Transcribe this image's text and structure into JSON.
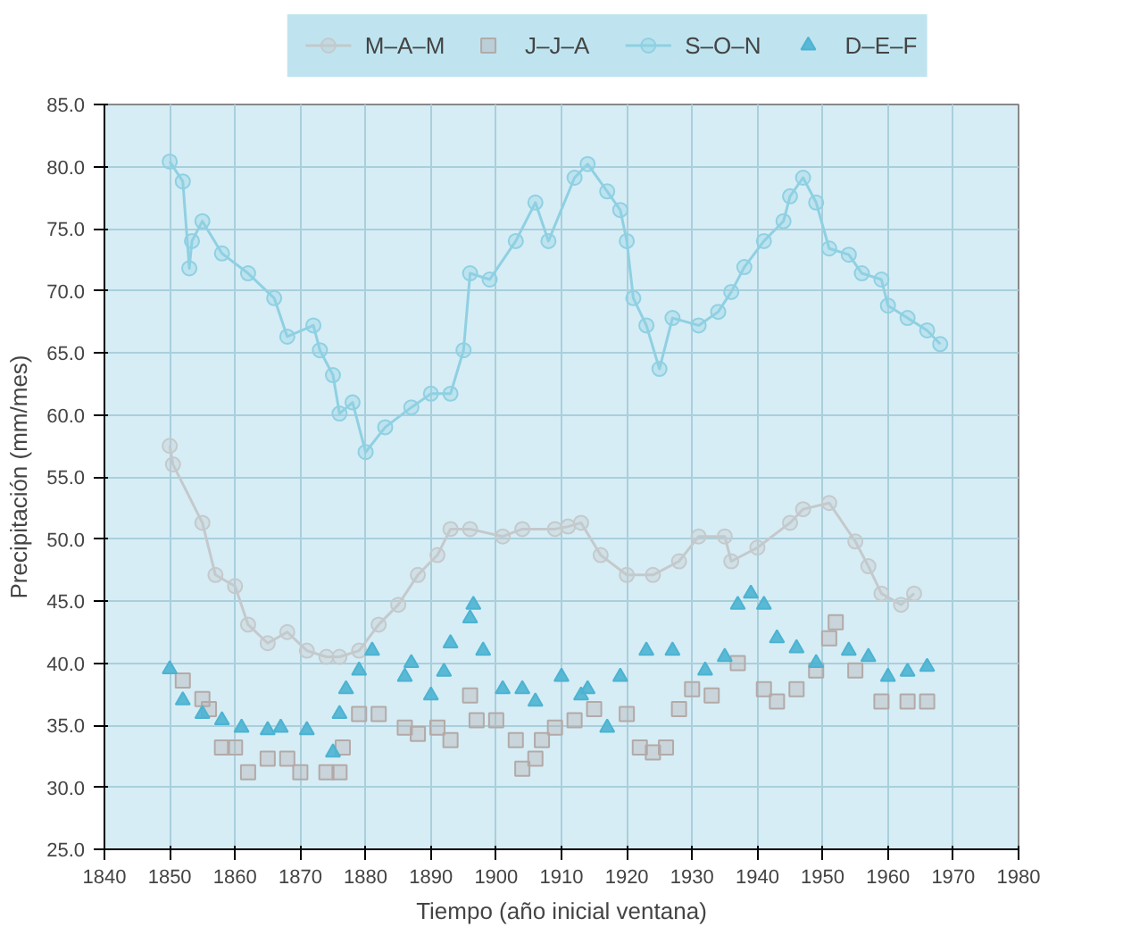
{
  "chart_data": {
    "type": "line",
    "xlabel": "Tiempo (año inicial ventana)",
    "ylabel": "Precipitación (mm/mes)",
    "xlim": [
      1840,
      1980
    ],
    "xticks": [
      1840,
      1850,
      1860,
      1870,
      1880,
      1890,
      1900,
      1910,
      1920,
      1930,
      1940,
      1950,
      1960,
      1970,
      1980
    ],
    "ylim": [
      25,
      85
    ],
    "yticks": [
      {
        "value": 25,
        "label": "25.0"
      },
      {
        "value": 30,
        "label": "30.0"
      },
      {
        "value": 35,
        "label": "35.0"
      },
      {
        "value": 40,
        "label": "40.0"
      },
      {
        "value": 45,
        "label": "45.0"
      },
      {
        "value": 50,
        "label": "50.0"
      },
      {
        "value": 55,
        "label": "55.0"
      },
      {
        "value": 60,
        "label": "60.0"
      },
      {
        "value": 65,
        "label": "65.0"
      },
      {
        "value": 70,
        "label": "70.0"
      },
      {
        "value": 75,
        "label": "75.0"
      },
      {
        "value": 80,
        "label": "80.0"
      },
      {
        "value": 85,
        "label": "85.0"
      }
    ],
    "grid": true,
    "legend": "top",
    "series": [
      {
        "name": "M–A–M",
        "marker": "circle",
        "color": "#c4c9cc",
        "x": [
          1850,
          1850.5,
          1855,
          1857,
          1860,
          1862,
          1865,
          1868,
          1871,
          1874,
          1876,
          1879,
          1882,
          1885,
          1888,
          1891,
          1893,
          1896,
          1901,
          1904,
          1909,
          1911,
          1913,
          1916,
          1920,
          1924,
          1928,
          1931,
          1935,
          1936,
          1940,
          1945,
          1947,
          1951,
          1955,
          1957,
          1959,
          1962,
          1964
        ],
        "values": [
          57.5,
          56,
          51.3,
          47.1,
          46.2,
          43.1,
          41.6,
          42.5,
          41,
          40.5,
          40.5,
          41,
          43.1,
          44.7,
          47.1,
          48.7,
          50.8,
          50.8,
          50.2,
          50.8,
          50.8,
          51.0,
          51.3,
          48.7,
          47.1,
          47.1,
          48.2,
          50.2,
          50.2,
          48.2,
          49.3,
          51.3,
          52.4,
          52.9,
          49.8,
          47.8,
          45.6,
          44.7,
          45.6
        ]
      },
      {
        "name": "J–J–A",
        "type": "scatter",
        "marker": "square",
        "color": "#b3aaa8",
        "x": [
          1852,
          1855,
          1856,
          1858,
          1860,
          1862,
          1865,
          1868,
          1870,
          1874,
          1876,
          1876.5,
          1879,
          1882,
          1886,
          1888,
          1891,
          1893,
          1896,
          1897,
          1900,
          1903,
          1904,
          1906,
          1907,
          1909,
          1912,
          1915,
          1920,
          1922,
          1924,
          1926,
          1928,
          1930,
          1933,
          1937,
          1941,
          1943,
          1946,
          1949,
          1951,
          1952,
          1955,
          1959,
          1963,
          1966
        ],
        "values": [
          38.6,
          37.1,
          36.3,
          33.2,
          33.2,
          31.2,
          32.3,
          32.3,
          31.2,
          31.2,
          31.2,
          33.2,
          35.9,
          35.9,
          34.8,
          34.3,
          34.8,
          33.8,
          37.4,
          35.4,
          35.4,
          33.8,
          31.5,
          32.3,
          33.8,
          34.8,
          35.4,
          36.3,
          35.9,
          33.2,
          32.8,
          33.2,
          36.3,
          37.9,
          37.4,
          40,
          37.9,
          36.9,
          37.9,
          39.4,
          42,
          43.3,
          39.4,
          36.9,
          36.9,
          36.9
        ]
      },
      {
        "name": "S–O–N",
        "marker": "circle",
        "color": "#8fd0e2",
        "x": [
          1850,
          1852,
          1853,
          1853.4,
          1855,
          1858,
          1862,
          1866,
          1868,
          1872,
          1873,
          1875,
          1876,
          1878,
          1880,
          1883,
          1887,
          1890,
          1893,
          1895,
          1896,
          1899,
          1903,
          1906,
          1908,
          1912,
          1914,
          1917,
          1919,
          1920,
          1921,
          1923,
          1925,
          1927,
          1931,
          1934,
          1936,
          1938,
          1941,
          1944,
          1945,
          1947,
          1949,
          1951,
          1954,
          1956,
          1959,
          1960,
          1963,
          1966,
          1968
        ],
        "values": [
          80.4,
          78.8,
          71.8,
          74,
          75.6,
          73,
          71.4,
          69.4,
          66.3,
          67.2,
          65.2,
          63.2,
          60.1,
          61,
          57,
          59,
          60.6,
          61.7,
          61.7,
          65.2,
          71.4,
          70.9,
          74,
          77.1,
          74,
          79.1,
          80.2,
          78,
          76.5,
          74,
          69.4,
          67.2,
          63.7,
          67.8,
          67.2,
          68.3,
          69.9,
          71.9,
          74,
          75.6,
          77.6,
          79.1,
          77.1,
          73.4,
          72.9,
          71.4,
          70.9,
          68.8,
          67.8,
          66.8,
          65.7
        ]
      },
      {
        "name": "D–E–F",
        "type": "scatter",
        "marker": "triangle",
        "color": "#4cb3d2",
        "x": [
          1850,
          1852,
          1855,
          1858,
          1861,
          1865,
          1867,
          1871,
          1875,
          1876,
          1877,
          1879,
          1881,
          1886,
          1887,
          1890,
          1892,
          1893,
          1896,
          1896.5,
          1898,
          1901,
          1904,
          1906,
          1910,
          1913,
          1914,
          1917,
          1919,
          1923,
          1927,
          1932,
          1935,
          1937,
          1939,
          1941,
          1943,
          1946,
          1949,
          1954,
          1957,
          1960,
          1963,
          1966
        ],
        "values": [
          39.5,
          37,
          35.9,
          35.4,
          34.8,
          34.6,
          34.8,
          34.6,
          32.8,
          35.9,
          37.9,
          39.4,
          41,
          38.9,
          40,
          37.4,
          39.3,
          41.6,
          43.6,
          44.7,
          41,
          37.9,
          37.9,
          36.9,
          38.9,
          37.4,
          37.9,
          34.8,
          38.9,
          41,
          41,
          39.4,
          40.5,
          44.7,
          45.6,
          44.7,
          42,
          41.2,
          40,
          41,
          40.5,
          38.9,
          39.3,
          39.7
        ]
      }
    ]
  }
}
